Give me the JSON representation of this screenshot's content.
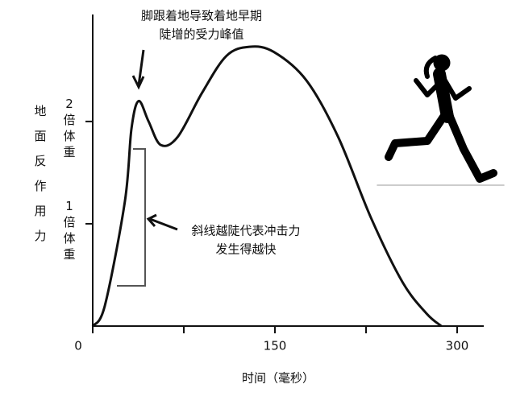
{
  "chart_data": {
    "type": "line",
    "y_label": "地面反作用力",
    "x_label": "时间（毫秒）",
    "annotations": [
      "脚跟着地导致着地早期",
      "陡增的受力峰值",
      "斜线越陡代表冲击力",
      "发生得越快"
    ],
    "x": [
      0,
      10,
      26.5,
      31.9,
      37.8,
      46,
      56,
      70,
      90,
      110,
      129,
      149,
      176,
      202,
      229,
      255,
      275,
      287
    ],
    "series": [
      {
        "color": "#111111",
        "values": [
          0,
          0.2,
          1.22,
          1.93,
          2.2,
          2.0,
          1.77,
          1.85,
          2.28,
          2.64,
          2.73,
          2.68,
          2.4,
          1.85,
          1.06,
          0.43,
          0.12,
          0
        ]
      }
    ],
    "xlim": [
      0,
      300
    ],
    "xticks": [
      0,
      150,
      300
    ],
    "xminor_ticks": [
      75,
      225
    ],
    "ylim": [
      0,
      3.03
    ],
    "yticks": [
      {
        "value": 1,
        "label": "1倍体重"
      },
      {
        "value": 2,
        "label": "2倍体重"
      }
    ]
  }
}
